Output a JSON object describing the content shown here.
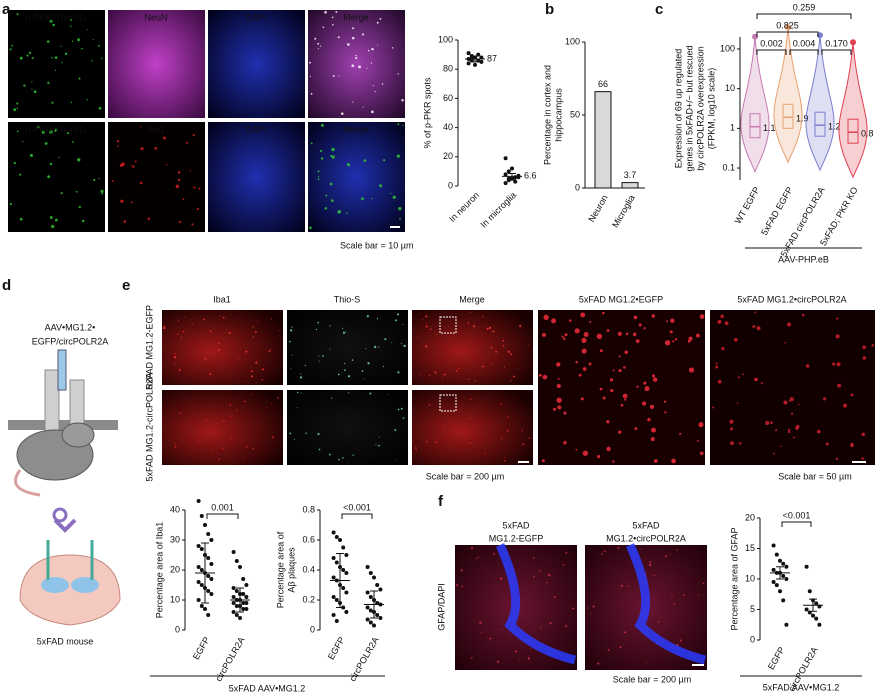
{
  "panel_labels": [
    "a",
    "b",
    "c",
    "d",
    "e",
    "f"
  ],
  "a_images": {
    "row1": [
      "p-PKR(Thr451)",
      "NeuN",
      "DAPI",
      "Merge"
    ],
    "row2": [
      "p-PKR(Thr451)",
      "Iba1",
      "DAPI",
      "Merge"
    ],
    "scale_bar": "Scale bar = 10 µm"
  },
  "d": {
    "construct": [
      "AAV•MG1.2•",
      "EGFP/circPOLR2A"
    ],
    "mouse": "5xFAD mouse"
  },
  "e_images": {
    "columns": [
      "Iba1",
      "Thio-S",
      "Merge",
      "5xFAD MG1.2•EGFP",
      "5xFAD MG1.2•circPOLR2A"
    ],
    "rows": [
      "5xFAD MG1.2-EGFP",
      "5xFAD MG1.2-circPOLR2A"
    ],
    "scale_bars": [
      "Scale bar = 200 µm",
      "Scale bar = 50 µm"
    ]
  },
  "e_group_label": "5xFAD AAV•MG1.2",
  "f_images": {
    "columns": [
      [
        "5xFAD",
        "MG1.2-EGFP"
      ],
      [
        "5xFAD",
        "MG1.2•circPOLR2A"
      ]
    ],
    "channel": "GFAP/DAPI",
    "scale_bar": "Scale bar = 200 µm"
  },
  "chart_data": [
    {
      "type": "dot",
      "ylabel": [
        "% of p-PKR spots"
      ],
      "categories": [
        "In neuron",
        "In microglia"
      ],
      "values": [
        87,
        6.6
      ],
      "errors": [
        2,
        2
      ],
      "value_label_color": "#3a9d3a",
      "points": [
        [
          84,
          86,
          88,
          90,
          85,
          87,
          89,
          83,
          86,
          88,
          91,
          87
        ],
        [
          2,
          4,
          5,
          6,
          7,
          8,
          10,
          12,
          3,
          6,
          19,
          5
        ]
      ],
      "ylim": [
        0,
        100
      ],
      "yticks": [
        0,
        20,
        40,
        60,
        80,
        100
      ]
    },
    {
      "type": "bar",
      "ylabel": [
        "Percentage in cortex and",
        "hippocampus"
      ],
      "categories": [
        "Neuron",
        "Microglia"
      ],
      "values": [
        66,
        3.7
      ],
      "color": "#d9d9d9",
      "value_label_color": "#3a9d3a",
      "ylim": [
        0,
        100
      ],
      "yticks": [
        0,
        50,
        100
      ]
    },
    {
      "type": "violin",
      "ylabel": [
        "Expression of 69 up regulated",
        "genes in 5xFAD+/− but rescued",
        "by circPOLR2A overexpression",
        "(FPKM, log10 scale)"
      ],
      "categories": [
        "WT EGFP",
        "5xFAD EGFP",
        "5xFAD circPOLR2A",
        "5xFAD; PKR KO"
      ],
      "values": [
        1.1,
        1.9,
        1.2,
        0.8
      ],
      "colors": [
        "#c77ab0",
        "#e8a070",
        "#7b7fd0",
        "#e04050"
      ],
      "log_scale": true,
      "ylim": [
        0.05,
        200
      ],
      "yticks": [
        0.1,
        1,
        10,
        100
      ],
      "comparisons": [
        "0.259",
        "0.825",
        "0.002",
        "0.004",
        "0.170"
      ],
      "group_label": "AAV-PHP.eB"
    },
    {
      "type": "dot",
      "ylabel": [
        "Percentage area of Iba1"
      ],
      "categories": [
        "EGFP",
        "circPOLR2A"
      ],
      "values": [
        19,
        10
      ],
      "errors": [
        10,
        4
      ],
      "points": [
        [
          43,
          38,
          35,
          32,
          30,
          28,
          27,
          25,
          24,
          22,
          21,
          20,
          19,
          18,
          17,
          16,
          15,
          14,
          13,
          12,
          10,
          8,
          7,
          5
        ],
        [
          26,
          23,
          21,
          17,
          15,
          14,
          13,
          12,
          12,
          11,
          11,
          10,
          10,
          9,
          9,
          9,
          8,
          8,
          7,
          7,
          6,
          5,
          4
        ]
      ],
      "ylim": [
        0,
        40
      ],
      "yticks": [
        0,
        10,
        20,
        30,
        40
      ],
      "comparisons": [
        "0.001"
      ]
    },
    {
      "type": "dot",
      "ylabel": [
        "Percentage area of",
        "Aβ plaques"
      ],
      "categories": [
        "EGFP",
        "circPOLR2A"
      ],
      "values": [
        0.33,
        0.17
      ],
      "errors": [
        0.18,
        0.09
      ],
      "points": [
        [
          0.65,
          0.62,
          0.6,
          0.55,
          0.5,
          0.48,
          0.45,
          0.42,
          0.4,
          0.38,
          0.35,
          0.33,
          0.3,
          0.28,
          0.25,
          0.22,
          0.2,
          0.18,
          0.15,
          0.12,
          0.1,
          0.06
        ],
        [
          0.42,
          0.38,
          0.35,
          0.3,
          0.27,
          0.25,
          0.22,
          0.2,
          0.18,
          0.17,
          0.15,
          0.13,
          0.12,
          0.1,
          0.08,
          0.07,
          0.05,
          0.03
        ]
      ],
      "ylim": [
        0,
        0.8
      ],
      "yticks": [
        0,
        0.2,
        0.4,
        0.6,
        0.8
      ],
      "comparisons": [
        "<0.001"
      ]
    },
    {
      "type": "dot",
      "ylabel": [
        "Percentage area of GFAP"
      ],
      "categories": [
        "EGFP",
        "circPOLR2A"
      ],
      "values": [
        11,
        5.7
      ],
      "errors": [
        1,
        1
      ],
      "points": [
        [
          15.5,
          14,
          13,
          12.5,
          12,
          11.5,
          11,
          11,
          10.5,
          10,
          9.5,
          9,
          8,
          6.5,
          2.5
        ],
        [
          12,
          8,
          6.5,
          6,
          5.5,
          5,
          4.5,
          4,
          3.5,
          2.5
        ]
      ],
      "ylim": [
        0,
        20
      ],
      "yticks": [
        0,
        5,
        10,
        15,
        20
      ],
      "comparisons": [
        "<0.001"
      ],
      "group_label": "5xFAD AAV•MG1.2"
    }
  ]
}
